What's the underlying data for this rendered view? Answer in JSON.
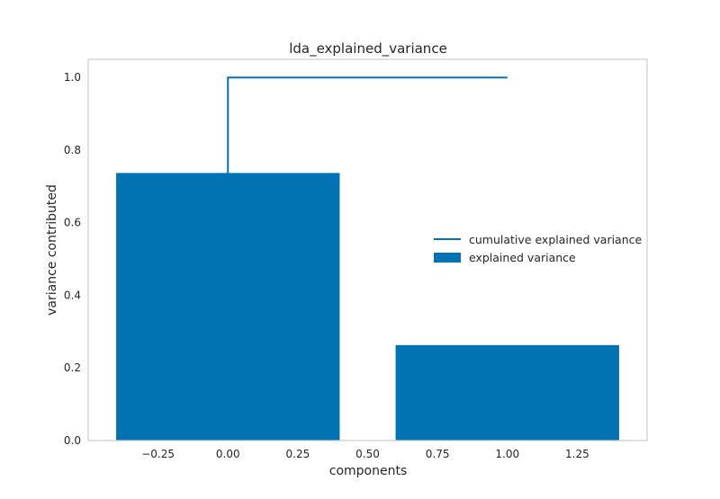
{
  "chart_data": {
    "type": "bar",
    "title": "lda_explained_variance",
    "xlabel": "components",
    "ylabel": "variance contributed",
    "xlim": [
      -0.5,
      1.5
    ],
    "ylim": [
      0.0,
      1.05
    ],
    "xticks": [
      -0.25,
      0.0,
      0.25,
      0.5,
      0.75,
      1.0,
      1.25
    ],
    "xtick_labels": [
      "−0.25",
      "0.00",
      "0.25",
      "0.50",
      "0.75",
      "1.00",
      "1.25"
    ],
    "yticks": [
      0.0,
      0.2,
      0.4,
      0.6,
      0.8,
      1.0
    ],
    "ytick_labels": [
      "0.0",
      "0.2",
      "0.4",
      "0.6",
      "0.8",
      "1.0"
    ],
    "grid": false,
    "legend_position": "center-right",
    "bars": {
      "name": "explained variance",
      "x": [
        0,
        1
      ],
      "values": [
        0.737,
        0.263
      ],
      "width": 0.8,
      "color": "#0173b2"
    },
    "line": {
      "name": "cumulative explained variance",
      "x": [
        0,
        1
      ],
      "values": [
        0.737,
        1.0
      ],
      "style": "step-post",
      "color": "#0173b2"
    },
    "legend": [
      {
        "label": "cumulative explained variance",
        "kind": "line"
      },
      {
        "label": "explained variance",
        "kind": "bar"
      }
    ],
    "frame_color": "#cccccc"
  }
}
